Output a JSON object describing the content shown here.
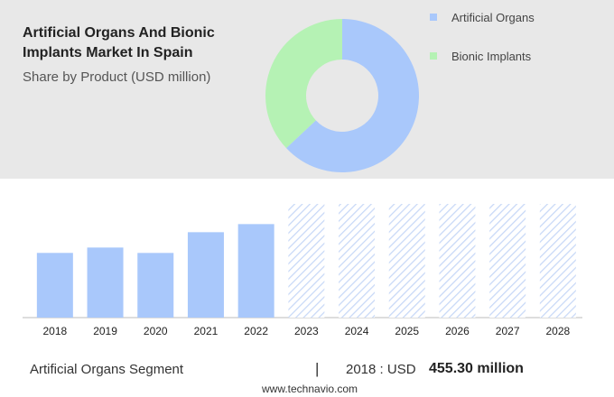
{
  "chart_data": [
    {
      "type": "pie",
      "title": "Artificial Organs And Bionic Implants Market In Spain",
      "subtitle": "Share by Product (USD million)",
      "categories": [
        "Artificial Organs",
        "Bionic Implants"
      ],
      "values": [
        63,
        37
      ],
      "colors": [
        "#a9c8fb",
        "#b5f2b4"
      ],
      "donut": true
    },
    {
      "type": "bar",
      "categories": [
        "2018",
        "2019",
        "2020",
        "2021",
        "2022",
        "2023",
        "2024",
        "2025",
        "2026",
        "2027",
        "2028"
      ],
      "values": [
        455.3,
        493,
        455,
        601,
        658,
        null,
        null,
        null,
        null,
        null,
        null
      ],
      "color": "#a9c8fb",
      "ylim": [
        0,
        800
      ]
    }
  ],
  "footer": {
    "segment": "Artificial Organs Segment",
    "separator": "|",
    "label": "2018 : USD",
    "value": "455.30 million",
    "source": "www.technavio.com"
  }
}
